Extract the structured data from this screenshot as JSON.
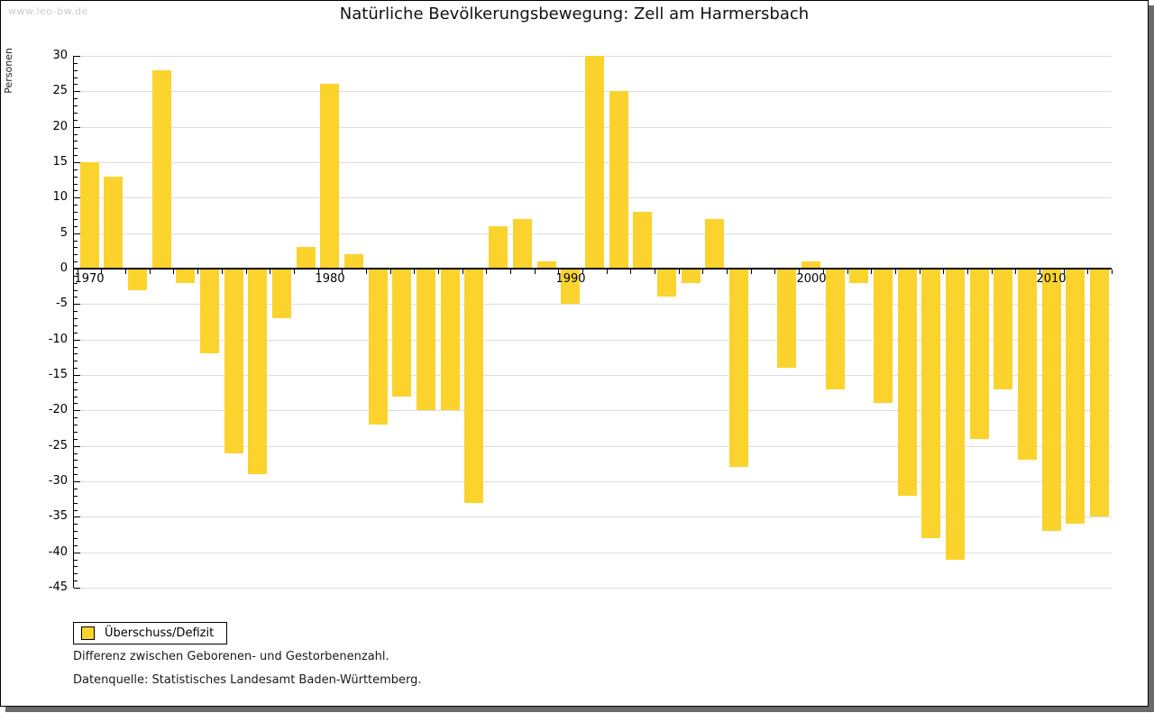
{
  "watermark": "www.leo-bw.de",
  "title": "Natürliche Bevölkerungsbewegung: Zell am Harmersbach",
  "legend": {
    "label": "Überschuss/Defizit"
  },
  "footnotes": [
    "Differenz zwischen Geborenen- und Gestorbenenzahl.",
    "Datenquelle: Statistisches Landesamt Baden-Württemberg."
  ],
  "colors": {
    "bar": "#fbd32c",
    "grid": "#dddddd",
    "axis": "#000000",
    "watermark": "#cccccc",
    "frame_shadow": "#6a6a6a"
  },
  "chart_data": {
    "type": "bar",
    "title": "Natürliche Bevölkerungsbewegung: Zell am Harmersbach",
    "ylabel": "Personen",
    "xlabel": "",
    "ylim": [
      -45,
      30
    ],
    "ytick_step": 5,
    "grid": true,
    "legend_position": "bottom-left",
    "xtick_labels": [
      "1970",
      "1980",
      "1990",
      "2000",
      "2010"
    ],
    "series_name": "Überschuss/Defizit",
    "years": [
      1970,
      1971,
      1972,
      1973,
      1974,
      1975,
      1976,
      1977,
      1978,
      1979,
      1980,
      1981,
      1982,
      1983,
      1984,
      1985,
      1986,
      1987,
      1988,
      1989,
      1990,
      1991,
      1992,
      1993,
      1994,
      1995,
      1996,
      1997,
      1998,
      1999,
      2000,
      2001,
      2002,
      2003,
      2004,
      2005,
      2006,
      2007,
      2008,
      2009,
      2010,
      2011,
      2012
    ],
    "values": [
      15,
      13,
      -3,
      28,
      -2,
      -12,
      -26,
      -29,
      -7,
      3,
      26,
      2,
      -22,
      -18,
      -20,
      -20,
      -33,
      6,
      7,
      1,
      -5,
      30,
      25,
      8,
      -4,
      -2,
      7,
      -28,
      0,
      -14,
      1,
      -17,
      -2,
      -19,
      -32,
      -38,
      -41,
      -24,
      -17,
      -27,
      -37,
      -36,
      -35
    ]
  }
}
